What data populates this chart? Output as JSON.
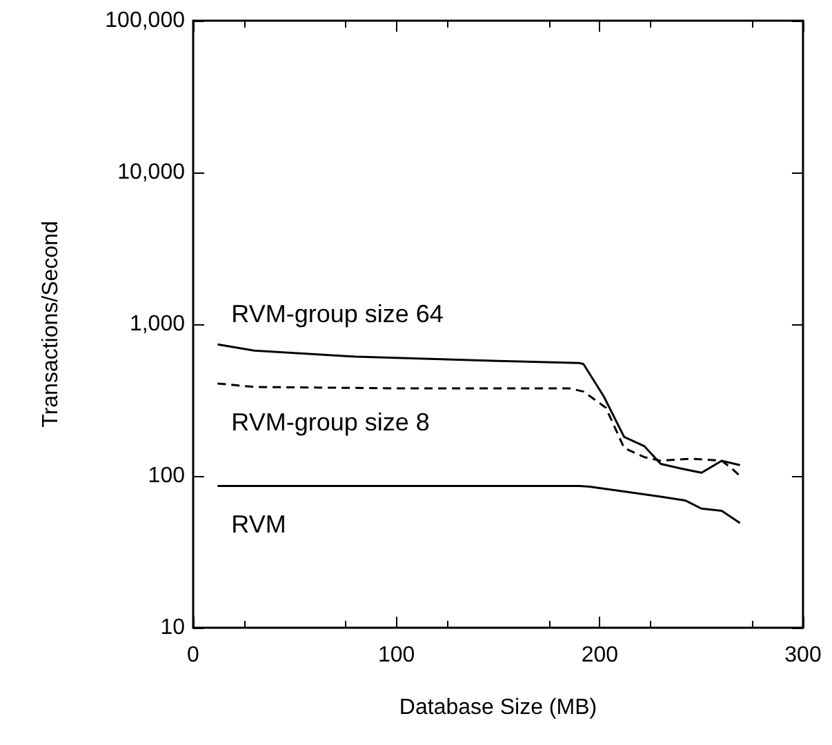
{
  "chart_data": {
    "type": "line",
    "xlabel": "Database Size (MB)",
    "ylabel": "Transactions/Second",
    "log": "y",
    "xlim": [
      0,
      300
    ],
    "xticks": [
      0,
      100,
      200,
      300
    ],
    "ylim": [
      10,
      100000
    ],
    "yticks": [
      10,
      100,
      {
        "value": 1000,
        "label": "1,000"
      },
      {
        "value": 10000,
        "label": "10,000"
      },
      {
        "value": 100000,
        "label": "100,000"
      }
    ],
    "grid": false,
    "legend": false,
    "series": [
      {
        "name": "RVM-group size 64",
        "color": "#000000",
        "line_style": "solid",
        "x": [
          12,
          30,
          80,
          150,
          190,
          192,
          202,
          212,
          222,
          230,
          240,
          250,
          260,
          269
        ],
        "values": [
          736,
          670,
          611,
          573,
          555,
          546,
          334,
          181,
          157,
          120,
          112,
          105,
          126,
          118
        ]
      },
      {
        "name": "RVM-group size 8",
        "color": "#000000",
        "line_style": "dashed",
        "x": [
          12,
          30,
          100,
          185,
          192,
          203,
          212,
          222,
          230,
          245,
          260,
          265,
          269
        ],
        "values": [
          407,
          386,
          378,
          378,
          360,
          282,
          153,
          133,
          126,
          130,
          126,
          112,
          100
        ]
      },
      {
        "name": "RVM",
        "color": "#000000",
        "line_style": "solid",
        "x": [
          12,
          190,
          195,
          212,
          230,
          242,
          250,
          260,
          269
        ],
        "values": [
          86,
          86,
          85,
          79,
          73,
          69,
          61,
          59,
          49
        ]
      }
    ]
  }
}
